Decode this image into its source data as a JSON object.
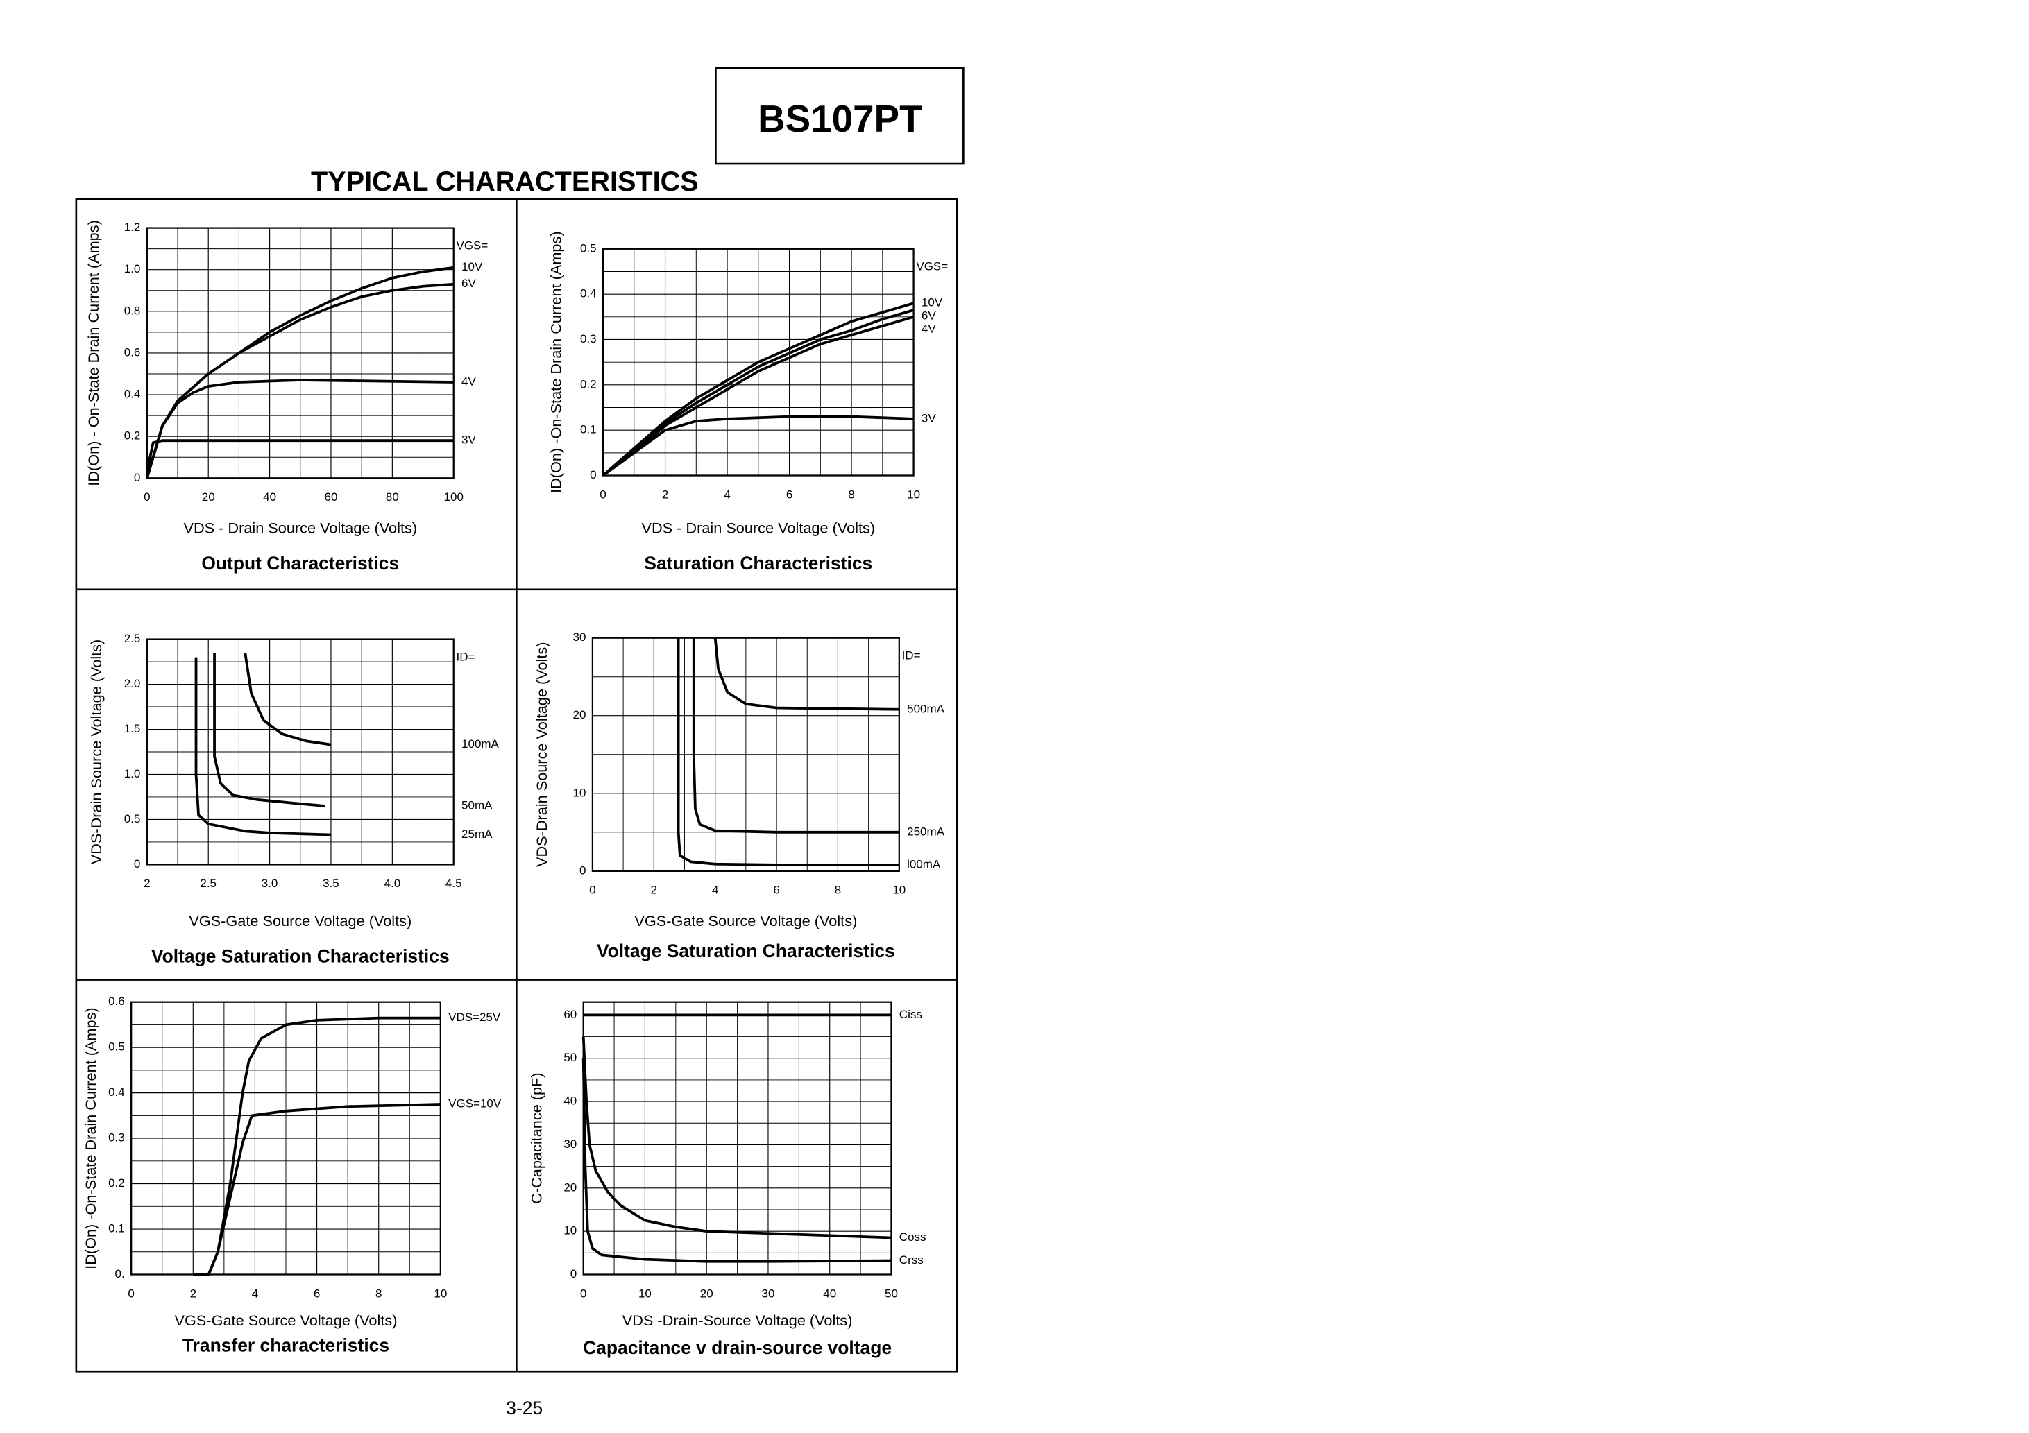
{
  "header": {
    "part": "BS107PT",
    "title": "TYPICAL CHARACTERISTICS"
  },
  "footer": {
    "page": "3-25"
  },
  "chart_data": [
    {
      "type": "line",
      "title": "Output Characteristics",
      "x_label": "VDS - Drain Source Voltage (Volts)",
      "y_label": "ID(On) - On-State Drain Current (Amps)",
      "xlim": [
        0,
        100
      ],
      "xticks": [
        0,
        20,
        40,
        60,
        80,
        100
      ],
      "ylim": [
        0,
        1.2
      ],
      "yticks": [
        0,
        0.2,
        0.4,
        0.6,
        0.8,
        {
          "value": 1,
          "label": "1.0"
        },
        1.2
      ],
      "grid": true,
      "minor_grid": true,
      "legend_title": "VGS=",
      "series": [
        {
          "name": "10V",
          "color": "#000000",
          "x": [
            0,
            2,
            5,
            10,
            20,
            30,
            40,
            50,
            60,
            70,
            80,
            90,
            100
          ],
          "values": [
            0,
            0.1,
            0.25,
            0.37,
            0.5,
            0.6,
            0.7,
            0.78,
            0.85,
            0.91,
            0.96,
            0.99,
            1.01
          ]
        },
        {
          "name": "6V",
          "color": "#000000",
          "x": [
            0,
            2,
            5,
            10,
            20,
            30,
            40,
            50,
            60,
            70,
            80,
            90,
            100
          ],
          "values": [
            0,
            0.1,
            0.25,
            0.37,
            0.5,
            0.6,
            0.68,
            0.76,
            0.82,
            0.87,
            0.9,
            0.92,
            0.93
          ]
        },
        {
          "name": "4V",
          "color": "#000000",
          "x": [
            0,
            2,
            5,
            10,
            15,
            20,
            30,
            50,
            100
          ],
          "values": [
            0,
            0.1,
            0.25,
            0.36,
            0.41,
            0.44,
            0.46,
            0.47,
            0.46
          ]
        },
        {
          "name": "3V",
          "color": "#000000",
          "x": [
            0,
            1,
            2,
            5,
            100
          ],
          "values": [
            0,
            0.1,
            0.17,
            0.18,
            0.18
          ]
        }
      ]
    },
    {
      "type": "line",
      "title": "Saturation Characteristics",
      "x_label": "VDS - Drain Source Voltage (Volts)",
      "y_label": "ID(On) -On-State Drain Current (Amps)",
      "xlim": [
        0,
        10
      ],
      "xticks": [
        0,
        2,
        4,
        6,
        8,
        10
      ],
      "ylim": [
        0,
        0.5
      ],
      "yticks": [
        0,
        0.1,
        0.2,
        0.3,
        0.4,
        0.5
      ],
      "grid": true,
      "minor_grid": true,
      "legend_title": "VGS=",
      "series": [
        {
          "name": "10V",
          "color": "#000000",
          "x": [
            0,
            1,
            2,
            3,
            4,
            5,
            6,
            7,
            8,
            9,
            10
          ],
          "values": [
            0,
            0.06,
            0.12,
            0.17,
            0.21,
            0.25,
            0.28,
            0.31,
            0.34,
            0.36,
            0.38
          ]
        },
        {
          "name": "6V",
          "color": "#000000",
          "x": [
            0,
            1,
            2,
            3,
            4,
            5,
            6,
            7,
            8,
            9,
            10
          ],
          "values": [
            0,
            0.055,
            0.115,
            0.16,
            0.2,
            0.24,
            0.27,
            0.3,
            0.32,
            0.345,
            0.365
          ]
        },
        {
          "name": "4V",
          "color": "#000000",
          "x": [
            0,
            1,
            2,
            3,
            4,
            5,
            6,
            7,
            8,
            9,
            10
          ],
          "values": [
            0,
            0.05,
            0.11,
            0.15,
            0.19,
            0.23,
            0.26,
            0.29,
            0.31,
            0.33,
            0.35
          ]
        },
        {
          "name": "3V",
          "color": "#000000",
          "x": [
            0,
            1,
            2,
            3,
            4,
            6,
            8,
            10
          ],
          "values": [
            0,
            0.05,
            0.1,
            0.12,
            0.125,
            0.13,
            0.13,
            0.125
          ]
        }
      ]
    },
    {
      "type": "line",
      "title": "Voltage Saturation Characteristics",
      "x_label": "VGS-Gate Source Voltage  (Volts)",
      "y_label": "VDS-Drain Source  Voltage (Volts)",
      "xlim": [
        2,
        4.5
      ],
      "xticks": [
        2,
        2.5,
        {
          "value": 3,
          "label": "3.0"
        },
        3.5,
        {
          "value": 4,
          "label": "4.0"
        },
        4.5
      ],
      "ylim": [
        0,
        2.5
      ],
      "yticks": [
        0,
        0.5,
        {
          "value": 1,
          "label": "1.0"
        },
        1.5,
        {
          "value": 2,
          "label": "2.0"
        },
        2.5
      ],
      "grid": true,
      "minor_grid": true,
      "legend_title": "ID=",
      "series": [
        {
          "name": "100mA",
          "color": "#000000",
          "x": [
            2.8,
            2.85,
            2.95,
            3.1,
            3.3,
            3.5
          ],
          "values": [
            2.35,
            1.9,
            1.6,
            1.45,
            1.37,
            1.33
          ]
        },
        {
          "name": "50mA",
          "color": "#000000",
          "x": [
            2.55,
            2.55,
            2.6,
            2.7,
            2.9,
            3.2,
            3.45
          ],
          "values": [
            2.35,
            1.2,
            0.9,
            0.77,
            0.72,
            0.68,
            0.65
          ]
        },
        {
          "name": "25mA",
          "color": "#000000",
          "x": [
            2.4,
            2.4,
            2.42,
            2.5,
            2.8,
            3,
            3.5
          ],
          "values": [
            2.3,
            1,
            0.55,
            0.45,
            0.37,
            0.35,
            0.33
          ]
        }
      ]
    },
    {
      "type": "line",
      "title": "Voltage Saturation Characteristics",
      "x_label": "VGS-Gate Source Voltage (Volts)",
      "y_label": "VDS-Drain Source Voltage (Volts)",
      "xlim": [
        0,
        10
      ],
      "xticks": [
        0,
        2,
        4,
        6,
        8,
        10
      ],
      "ylim": [
        0,
        30
      ],
      "yticks": [
        0,
        10,
        20,
        30
      ],
      "grid": true,
      "minor_grid": true,
      "legend_title": "ID=",
      "series": [
        {
          "name": "500mA",
          "color": "#000000",
          "x": [
            4,
            4.1,
            4.4,
            5,
            6,
            8,
            10
          ],
          "values": [
            30,
            26,
            23,
            21.5,
            21,
            20.9,
            20.8
          ]
        },
        {
          "name": "250mA",
          "color": "#000000",
          "x": [
            3.3,
            3.3,
            3.35,
            3.5,
            4,
            6,
            10
          ],
          "values": [
            30,
            15,
            8,
            6,
            5.2,
            5,
            5
          ]
        },
        {
          "name": "l00mA",
          "color": "#000000",
          "x": [
            2.8,
            2.8,
            2.85,
            3.2,
            4,
            6,
            10
          ],
          "values": [
            30,
            5,
            2,
            1.2,
            0.9,
            0.8,
            0.8
          ]
        }
      ]
    },
    {
      "type": "line",
      "title": "Transfer characteristics",
      "x_label": "VGS-Gate Source Voltage (Volts)",
      "y_label": "ID(On) -On-State Drain Current (Amps)",
      "xlim": [
        0,
        10
      ],
      "xticks": [
        0,
        2,
        4,
        6,
        8,
        10
      ],
      "ylim": [
        0,
        0.6
      ],
      "yticks": [
        {
          "value": 0,
          "label": "0."
        },
        0.1,
        0.2,
        0.3,
        0.4,
        0.5,
        0.6
      ],
      "grid": true,
      "minor_grid": true,
      "series": [
        {
          "name": "VDS=25V",
          "color": "#000000",
          "x": [
            2,
            2.5,
            2.8,
            3.2,
            3.6,
            3.8,
            4.2,
            5,
            6,
            8,
            10
          ],
          "values": [
            0,
            0,
            0.05,
            0.2,
            0.4,
            0.47,
            0.52,
            0.55,
            0.56,
            0.565,
            0.565
          ]
        },
        {
          "name": "VGS=10V",
          "color": "#000000",
          "x": [
            2,
            2.5,
            2.8,
            3.2,
            3.6,
            3.9,
            5,
            7,
            10
          ],
          "values": [
            0,
            0,
            0.05,
            0.17,
            0.29,
            0.35,
            0.36,
            0.37,
            0.375
          ]
        }
      ]
    },
    {
      "type": "line",
      "title": "Capacitance v drain-source voltage",
      "x_label": "VDS -Drain-Source Voltage (Volts)",
      "y_label": "C-Capacitance (pF)",
      "xlim": [
        0,
        50
      ],
      "xticks": [
        0,
        10,
        20,
        30,
        40,
        50
      ],
      "ylim": [
        0,
        63
      ],
      "yticks": [
        0,
        10,
        20,
        30,
        40,
        50,
        60
      ],
      "grid": true,
      "minor_grid": true,
      "series": [
        {
          "name": "Ciss",
          "color": "#000000",
          "x": [
            0,
            50
          ],
          "values": [
            60,
            60
          ]
        },
        {
          "name": "Coss",
          "color": "#000000",
          "x": [
            0,
            0.5,
            1,
            2,
            4,
            6,
            10,
            15,
            20,
            30,
            40,
            50
          ],
          "values": [
            55,
            40,
            30,
            24,
            19,
            16,
            12.5,
            11,
            10,
            9.5,
            9,
            8.5
          ]
        },
        {
          "name": "Crss",
          "color": "#000000",
          "x": [
            0,
            0.3,
            0.7,
            1.5,
            3,
            10,
            20,
            30,
            50
          ],
          "values": [
            50,
            25,
            10,
            6,
            4.5,
            3.5,
            3,
            3,
            3.2
          ]
        }
      ]
    }
  ]
}
